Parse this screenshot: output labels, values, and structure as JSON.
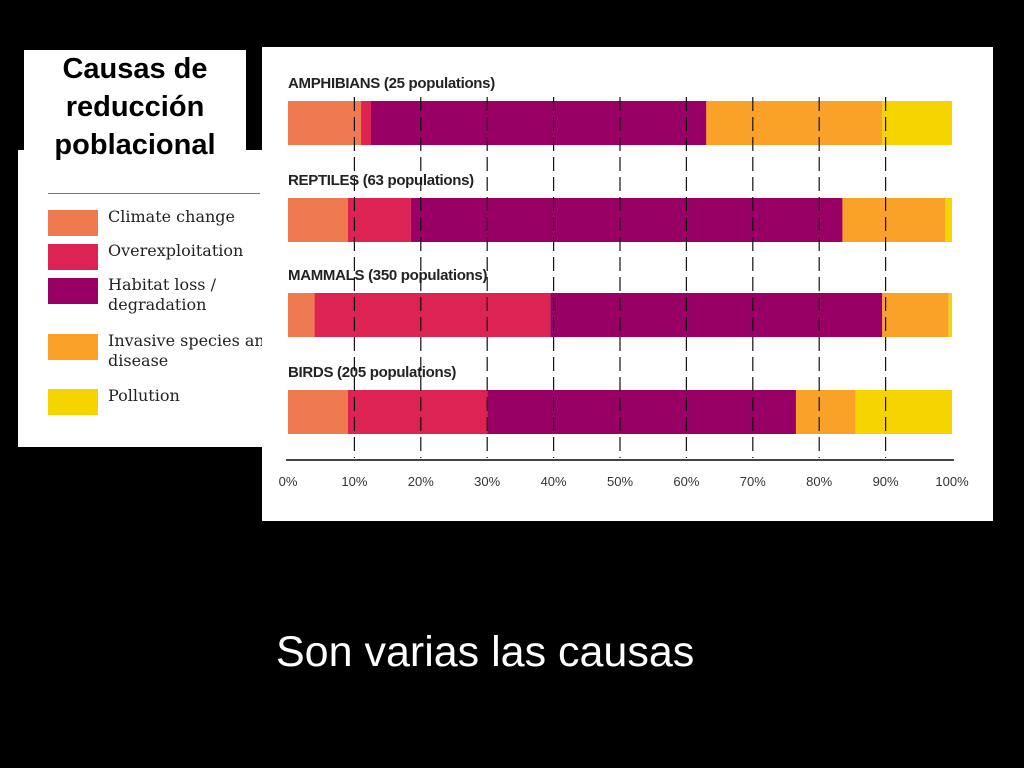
{
  "slide": {
    "title_lines": [
      "Causas de",
      "reducción",
      "poblacional"
    ],
    "caption": "Son varias las causas"
  },
  "legend": [
    {
      "label": "Climate change",
      "color": "#F07A50"
    },
    {
      "label": "Overexploitation",
      "color": "#DC2354"
    },
    {
      "label": "Habitat loss / degradation",
      "color": "#990066"
    },
    {
      "label": "Invasive species and disease",
      "color": "#FAA228"
    },
    {
      "label": "Pollution",
      "color": "#F5D400"
    }
  ],
  "chart_data": {
    "type": "bar",
    "orientation": "horizontal",
    "stacked": true,
    "categories": [
      "AMPHIBIANS (25 populations)",
      "REPTILES (63 populations)",
      "MAMMALS (350 populations)",
      "BIRDS (205 populations)"
    ],
    "series": [
      {
        "name": "Climate change",
        "color": "#F07A50",
        "values": [
          11,
          9,
          4,
          9
        ]
      },
      {
        "name": "Overexploitation",
        "color": "#DC2354",
        "values": [
          1.5,
          9.5,
          35.5,
          21
        ]
      },
      {
        "name": "Habitat loss / degradation",
        "color": "#990066",
        "values": [
          50.5,
          65,
          50,
          46.5
        ]
      },
      {
        "name": "Invasive species and disease",
        "color": "#FAA228",
        "values": [
          26.5,
          15.5,
          10,
          9
        ]
      },
      {
        "name": "Pollution",
        "color": "#F5D400",
        "values": [
          10.5,
          1,
          0.5,
          14.5
        ]
      }
    ],
    "xlim": [
      0,
      100
    ],
    "x_ticks": [
      "0%",
      "10%",
      "20%",
      "30%",
      "40%",
      "50%",
      "60%",
      "70%",
      "80%",
      "90%",
      "100%"
    ],
    "grid": "vertical dashed",
    "legend_placement": "left"
  }
}
